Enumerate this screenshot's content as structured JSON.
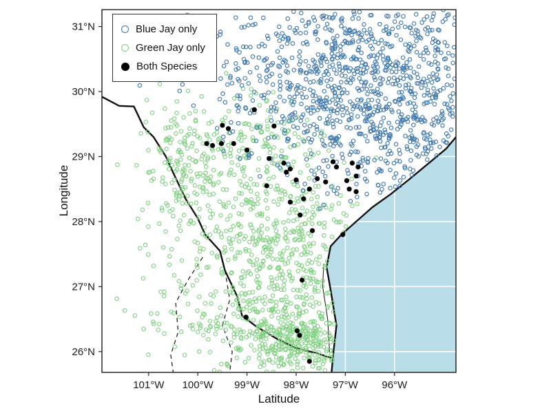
{
  "figure": {
    "background": "#ffffff"
  },
  "chart_data": {
    "type": "scatter",
    "title": "",
    "xlabel": "Latitude",
    "ylabel": "Longitude",
    "xlim": [
      -101.95,
      -94.75
    ],
    "ylim": [
      25.68,
      31.26
    ],
    "xticks": {
      "values": [
        -101,
        -100,
        -99,
        -98,
        -97,
        -96
      ],
      "labels": [
        "101°W",
        "100°W",
        "99°W",
        "98°W",
        "97°W",
        "96°W"
      ]
    },
    "yticks": {
      "values": [
        31,
        30,
        29,
        28,
        27,
        26
      ],
      "labels": [
        "31°N",
        "30°N",
        "29°N",
        "28°N",
        "27°N",
        "26°N"
      ]
    },
    "grid": {
      "color": "#ffffff",
      "width": 1.6,
      "on": true
    },
    "panel_border_color": "#1a1a1a",
    "legend_position": "top-left-inside",
    "seed": 42,
    "legend": {
      "items": [
        {
          "label": "Blue Jay only",
          "series": "blue_jay"
        },
        {
          "label": "Green Jay only",
          "series": "green_jay"
        },
        {
          "label": "Both Species",
          "series": "both"
        }
      ]
    },
    "series": {
      "blue_jay": {
        "name": "Blue Jay only",
        "color": "#3d77b0",
        "marker": "open-circle",
        "r": 2.7,
        "clusters": [
          {
            "n": 700,
            "cx": -96.2,
            "cy": 30.5,
            "sx": 1.1,
            "sy": 0.75
          },
          {
            "n": 250,
            "cx": -97.6,
            "cy": 29.9,
            "sx": 0.9,
            "sy": 0.6
          },
          {
            "n": 150,
            "cx": -95.4,
            "cy": 29.3,
            "sx": 0.6,
            "sy": 0.5
          },
          {
            "n": 80,
            "cx": -98.6,
            "cy": 30.3,
            "sx": 0.7,
            "sy": 0.55
          },
          {
            "n": 60,
            "cx": -96.9,
            "cy": 28.9,
            "sx": 0.7,
            "sy": 0.4
          },
          {
            "n": 25,
            "cx": -99.3,
            "cy": 30.3,
            "sx": 0.6,
            "sy": 0.5
          }
        ]
      },
      "green_jay": {
        "name": "Green Jay only",
        "color": "#7ed17e",
        "marker": "open-circle",
        "r": 2.7,
        "clusters": [
          {
            "n": 550,
            "cx": -98.4,
            "cy": 27.4,
            "sx": 0.75,
            "sy": 0.95
          },
          {
            "n": 280,
            "cx": -97.9,
            "cy": 26.15,
            "sx": 0.55,
            "sy": 0.28
          },
          {
            "n": 150,
            "cx": -99.9,
            "cy": 28.2,
            "sx": 0.55,
            "sy": 0.75
          },
          {
            "n": 110,
            "cx": -100.3,
            "cy": 29.0,
            "sx": 0.45,
            "sy": 0.45
          },
          {
            "n": 90,
            "cx": -98.8,
            "cy": 29.2,
            "sx": 0.55,
            "sy": 0.38
          },
          {
            "n": 90,
            "cx": -99.7,
            "cy": 26.4,
            "sx": 0.8,
            "sy": 0.5
          },
          {
            "n": 40,
            "cx": -97.6,
            "cy": 27.9,
            "sx": 0.4,
            "sy": 0.4
          }
        ]
      },
      "both": {
        "name": "Both Species",
        "color": "#000000",
        "marker": "filled-circle",
        "r": 3.6,
        "points": [
          [
            -98.45,
            29.47
          ],
          [
            -99.82,
            29.2
          ],
          [
            -99.7,
            29.17
          ],
          [
            -99.5,
            29.48
          ],
          [
            -99.52,
            29.2
          ],
          [
            -99.0,
            29.1
          ],
          [
            -98.85,
            29.72
          ],
          [
            -99.38,
            29.43
          ],
          [
            -98.25,
            28.9
          ],
          [
            -98.2,
            28.76
          ],
          [
            -98.0,
            28.64
          ],
          [
            -97.85,
            28.35
          ],
          [
            -97.73,
            28.5
          ],
          [
            -97.25,
            28.92
          ],
          [
            -97.18,
            28.84
          ],
          [
            -96.86,
            28.9
          ],
          [
            -96.74,
            28.84
          ],
          [
            -96.78,
            28.7
          ],
          [
            -96.97,
            28.63
          ],
          [
            -96.92,
            28.5
          ],
          [
            -96.78,
            28.46
          ],
          [
            -97.92,
            28.1
          ],
          [
            -97.67,
            27.86
          ],
          [
            -97.05,
            27.8
          ],
          [
            -97.88,
            27.1
          ],
          [
            -99.02,
            26.53
          ],
          [
            -97.98,
            26.32
          ],
          [
            -97.93,
            26.25
          ],
          [
            -97.73,
            25.85
          ],
          [
            -98.12,
            28.81
          ],
          [
            -97.57,
            28.66
          ],
          [
            -97.4,
            28.61
          ],
          [
            -98.12,
            28.3
          ],
          [
            -98.55,
            28.97
          ],
          [
            -99.27,
            29.2
          ],
          [
            -98.6,
            28.55
          ]
        ]
      }
    },
    "map": {
      "sea_color": "#b9dde9",
      "line_color": "#111111",
      "coast": [
        [
          -97.28,
          25.68
        ],
        [
          -97.24,
          26.0
        ],
        [
          -97.18,
          26.4
        ],
        [
          -97.3,
          26.95
        ],
        [
          -97.38,
          27.3
        ],
        [
          -97.3,
          27.62
        ],
        [
          -97.08,
          27.8
        ],
        [
          -96.78,
          28.0
        ],
        [
          -96.45,
          28.22
        ],
        [
          -96.08,
          28.42
        ],
        [
          -95.7,
          28.65
        ],
        [
          -95.3,
          28.9
        ],
        [
          -94.95,
          29.12
        ],
        [
          -94.75,
          29.3
        ]
      ],
      "lagoon": [
        [
          -97.32,
          26.0
        ],
        [
          -97.36,
          26.5
        ],
        [
          -97.46,
          27.0
        ],
        [
          -97.44,
          27.35
        ]
      ],
      "river": [
        [
          -101.95,
          29.92
        ],
        [
          -101.6,
          29.78
        ],
        [
          -101.3,
          29.77
        ],
        [
          -101.1,
          29.45
        ],
        [
          -100.9,
          29.3
        ],
        [
          -100.65,
          29.0
        ],
        [
          -100.5,
          28.75
        ],
        [
          -100.25,
          28.35
        ],
        [
          -100.0,
          28.05
        ],
        [
          -99.85,
          27.8
        ],
        [
          -99.55,
          27.55
        ],
        [
          -99.45,
          27.25
        ],
        [
          -99.2,
          26.85
        ],
        [
          -99.1,
          26.55
        ],
        [
          -98.8,
          26.38
        ],
        [
          -98.4,
          26.2
        ],
        [
          -98.0,
          26.05
        ],
        [
          -97.6,
          25.98
        ],
        [
          -97.28,
          25.9
        ]
      ],
      "dashed_borders": [
        [
          [
            -99.9,
            27.45
          ],
          [
            -100.2,
            27.1
          ],
          [
            -100.45,
            26.75
          ],
          [
            -100.4,
            26.3
          ],
          [
            -100.55,
            25.95
          ],
          [
            -100.5,
            25.68
          ]
        ],
        [
          [
            -99.45,
            27.25
          ],
          [
            -99.35,
            26.8
          ],
          [
            -99.5,
            26.4
          ],
          [
            -99.3,
            26.0
          ],
          [
            -99.35,
            25.68
          ]
        ]
      ],
      "sea_polygon": [
        [
          -97.28,
          25.68
        ],
        [
          -97.24,
          26.0
        ],
        [
          -97.18,
          26.4
        ],
        [
          -97.3,
          26.95
        ],
        [
          -97.38,
          27.3
        ],
        [
          -97.3,
          27.62
        ],
        [
          -97.08,
          27.8
        ],
        [
          -96.78,
          28.0
        ],
        [
          -96.45,
          28.22
        ],
        [
          -96.08,
          28.42
        ],
        [
          -95.7,
          28.65
        ],
        [
          -95.3,
          28.9
        ],
        [
          -94.95,
          29.12
        ],
        [
          -94.75,
          29.3
        ],
        [
          -94.75,
          25.68
        ]
      ]
    }
  }
}
